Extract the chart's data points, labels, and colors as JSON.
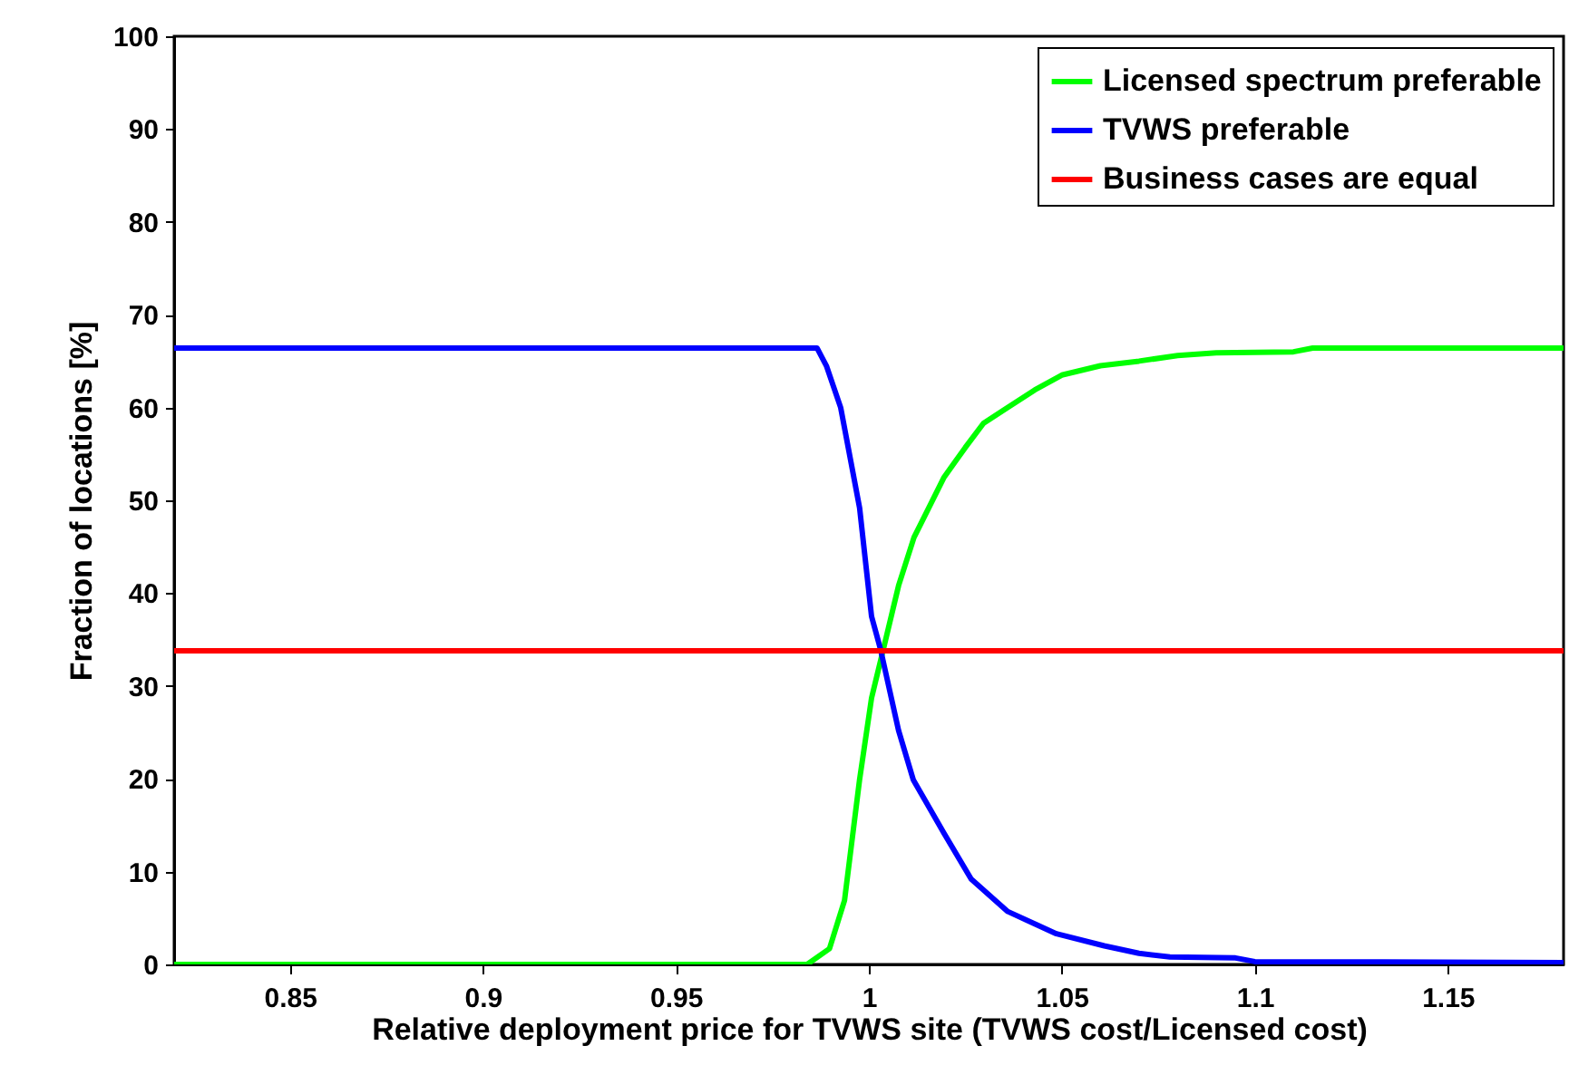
{
  "chart_data": {
    "type": "line",
    "xlabel": "Relative deployment price for TVWS site (TVWS cost/Licensed cost)",
    "ylabel": "Fraction of locations [%]",
    "xlim": [
      0.82,
      1.18
    ],
    "xticks": [
      0.85,
      0.9,
      0.95,
      1,
      1.05,
      1.1,
      1.15
    ],
    "ylim": [
      0,
      100
    ],
    "yticks": [
      0,
      10,
      20,
      30,
      40,
      50,
      60,
      70,
      80,
      90,
      100
    ],
    "grid": false,
    "legend": "top right",
    "line_style": "solid",
    "marker": "none",
    "series": [
      {
        "name": "Licensed spectrum preferable",
        "color": "#00ff00",
        "x": [
          0.82,
          0.984,
          0.9898,
          0.9937,
          0.9976,
          1.0007,
          1.0039,
          1.0077,
          1.0117,
          1.0195,
          1.025,
          1.0297,
          1.036,
          1.043,
          1.05,
          1.06,
          1.07,
          1.08,
          1.09,
          1.11,
          1.115,
          1.18
        ],
        "values": [
          0,
          0,
          1.7,
          6.9,
          19.9,
          28.7,
          34.2,
          40.8,
          46,
          52.5,
          55.7,
          58.3,
          60,
          61.9,
          63.5,
          64.5,
          65,
          65.6,
          65.9,
          66,
          66.4,
          66.4
        ]
      },
      {
        "name": "TVWS preferable",
        "color": "#0000ff",
        "x": [
          0.82,
          0.9866,
          0.989,
          0.9927,
          0.9976,
          1.0007,
          1.003,
          1.0077,
          1.0115,
          1.0195,
          1.0265,
          1.036,
          1.0486,
          1.061,
          1.07,
          1.078,
          1.095,
          1.1,
          1.18
        ],
        "values": [
          66.4,
          66.4,
          64.5,
          60,
          49.2,
          37.5,
          34,
          25.2,
          19.9,
          14.1,
          9.2,
          5.7,
          3.3,
          2,
          1.2,
          0.8,
          0.7,
          0.3,
          0.2
        ]
      },
      {
        "name": "Business cases are equal",
        "color": "#ff0000",
        "x": [
          0.82,
          1.18
        ],
        "values": [
          33.8,
          33.8
        ]
      }
    ]
  }
}
